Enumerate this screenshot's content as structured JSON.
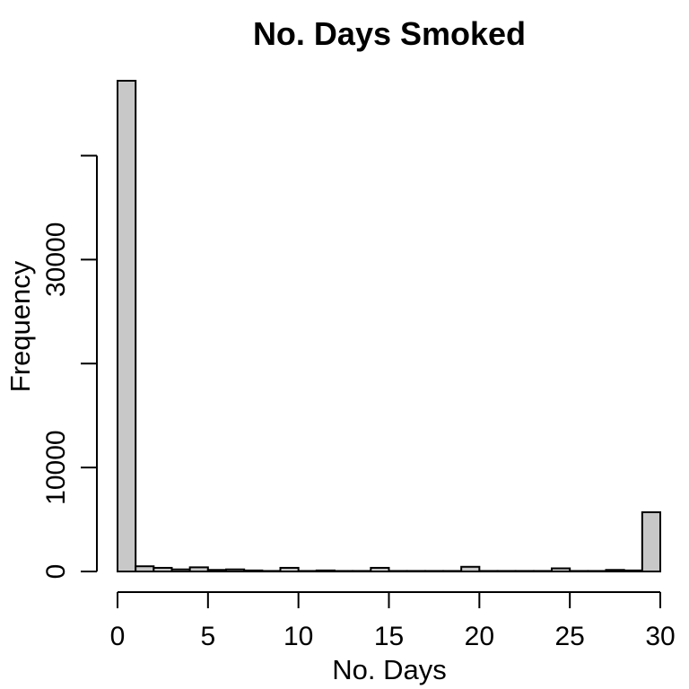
{
  "chart_data": {
    "type": "bar",
    "title": "No. Days Smoked",
    "xlabel": "No. Days",
    "ylabel": "Frequency",
    "bin_edges": [
      0,
      1,
      2,
      3,
      4,
      5,
      6,
      7,
      8,
      9,
      10,
      11,
      12,
      13,
      14,
      15,
      16,
      17,
      18,
      19,
      20,
      21,
      22,
      23,
      24,
      25,
      26,
      27,
      28,
      29,
      30
    ],
    "values": [
      47200,
      500,
      350,
      200,
      400,
      150,
      200,
      100,
      50,
      350,
      50,
      100,
      50,
      50,
      350,
      50,
      50,
      50,
      50,
      450,
      50,
      50,
      50,
      50,
      300,
      50,
      50,
      150,
      100,
      5700
    ],
    "xlim": [
      0,
      30
    ],
    "ylim": [
      0,
      47200
    ],
    "x_ticks": [
      0,
      5,
      10,
      15,
      20,
      25,
      30
    ],
    "x_tick_labels": [
      "0",
      "5",
      "10",
      "15",
      "20",
      "25",
      "30"
    ],
    "y_ticks": [
      0,
      10000,
      20000,
      30000,
      40000
    ],
    "y_tick_labels": [
      "0",
      "10000",
      "",
      "30000",
      ""
    ],
    "grid": false,
    "bar_color": "#c8c8c8",
    "edge_color": "#000000"
  }
}
